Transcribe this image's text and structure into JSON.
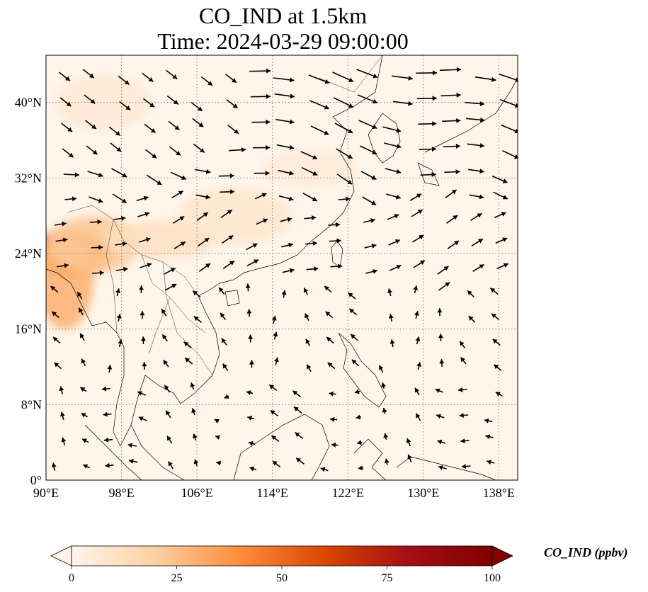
{
  "title": {
    "line1": "CO_IND at 1.5km",
    "line2": "Time: 2024-03-29 09:00:00"
  },
  "map": {
    "lon_range": [
      90,
      140
    ],
    "lat_range": [
      0,
      45
    ],
    "lon_ticks": [
      {
        "value": 90,
        "label": "90°E"
      },
      {
        "value": 98,
        "label": "98°E"
      },
      {
        "value": 106,
        "label": "106°E"
      },
      {
        "value": 114,
        "label": "114°E"
      },
      {
        "value": 122,
        "label": "122°E"
      },
      {
        "value": 130,
        "label": "130°E"
      },
      {
        "value": 138,
        "label": "138°E"
      }
    ],
    "lat_ticks": [
      {
        "value": 0,
        "label": "0°"
      },
      {
        "value": 8,
        "label": "8°N"
      },
      {
        "value": 16,
        "label": "16°N"
      },
      {
        "value": 24,
        "label": "24°N"
      },
      {
        "value": 32,
        "label": "32°N"
      },
      {
        "value": 40,
        "label": "40°N"
      }
    ],
    "gridlines": "dotted",
    "background_color": "#fff5eb",
    "field_variable": "CO_IND",
    "overlay": "wind vectors"
  },
  "colorbar": {
    "label": "CO_IND (ppbv)",
    "ticks": [
      {
        "value": 0,
        "label": "0"
      },
      {
        "value": 25,
        "label": "25"
      },
      {
        "value": 50,
        "label": "50"
      },
      {
        "value": 75,
        "label": "75"
      },
      {
        "value": 100,
        "label": "100"
      }
    ],
    "min": 0,
    "max": 100,
    "extend": "both",
    "cmap_stops": [
      "#fff5eb",
      "#fdd0a2",
      "#fd8d3c",
      "#d94801",
      "#a50f15",
      "#7f0000"
    ]
  },
  "plumes": [
    {
      "lon": 91,
      "lat": 25,
      "rx": 2.5,
      "ry": 1.2,
      "value": 70
    },
    {
      "lon": 93,
      "lat": 24,
      "rx": 4,
      "ry": 2.5,
      "value": 45
    },
    {
      "lon": 92,
      "lat": 21,
      "rx": 3,
      "ry": 5,
      "value": 30
    },
    {
      "lon": 95,
      "lat": 25,
      "rx": 5,
      "ry": 3,
      "value": 22
    },
    {
      "lon": 102,
      "lat": 25.5,
      "rx": 6,
      "ry": 2,
      "value": 12
    },
    {
      "lon": 110,
      "lat": 28,
      "rx": 6,
      "ry": 3,
      "value": 8
    },
    {
      "lon": 96,
      "lat": 40,
      "rx": 5,
      "ry": 3,
      "value": 6
    },
    {
      "lon": 118,
      "lat": 33,
      "rx": 5,
      "ry": 2,
      "value": 5
    }
  ]
}
